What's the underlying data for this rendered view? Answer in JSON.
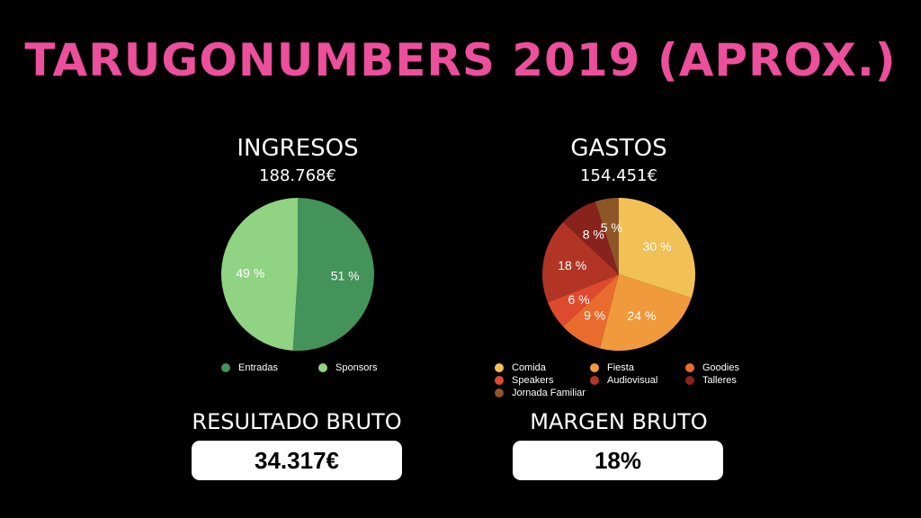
{
  "title": "TARUGONUMBERS 2019 (APROX.)",
  "colors": {
    "title": "#ec4f9b",
    "background": "#000000"
  },
  "chart_data": [
    {
      "type": "pie",
      "title": "INGRESOS",
      "subtitle": "188.768€",
      "legend_placement": "bottom",
      "slices": [
        {
          "name": "Entradas",
          "value": 51,
          "label": "51 %",
          "color": "#43935a"
        },
        {
          "name": "Sponsors",
          "value": 49,
          "label": "49 %",
          "color": "#8fd383"
        }
      ]
    },
    {
      "type": "pie",
      "title": "GASTOS",
      "subtitle": "154.451€",
      "legend_placement": "bottom",
      "slices": [
        {
          "name": "Comida",
          "value": 30,
          "label": "30 %",
          "color": "#f2c155"
        },
        {
          "name": "Fiesta",
          "value": 24,
          "label": "24 %",
          "color": "#ef9a3c"
        },
        {
          "name": "Goodies",
          "value": 9,
          "label": "9 %",
          "color": "#ea6b2e"
        },
        {
          "name": "Speakers",
          "value": 6,
          "label": "6 %",
          "color": "#dd4a2d"
        },
        {
          "name": "Audiovisual",
          "value": 18,
          "label": "18 %",
          "color": "#b23424"
        },
        {
          "name": "Talleres",
          "value": 8,
          "label": "8 %",
          "color": "#87231c"
        },
        {
          "name": "Jornada Familiar",
          "value": 5,
          "label": "5 %",
          "color": "#8e5526"
        }
      ]
    }
  ],
  "metrics": {
    "resultado": {
      "label": "RESULTADO BRUTO",
      "value": "34.317€"
    },
    "margen": {
      "label": "MARGEN BRUTO",
      "value": "18%"
    }
  }
}
